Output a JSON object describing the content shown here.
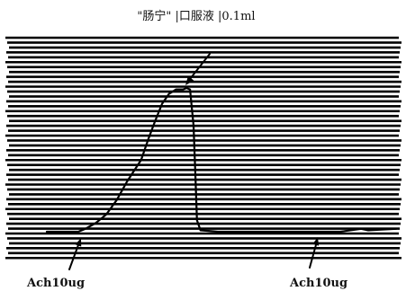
{
  "chart_data": {
    "type": "line",
    "title": "\"肠宁\" |口服液 |0.1ml",
    "grid": true,
    "series": [
      {
        "x": [
          0,
          9,
          11,
          14,
          17,
          20,
          23,
          27,
          29,
          31,
          33,
          35,
          37,
          39,
          40,
          41,
          42,
          42.5,
          43,
          44,
          49,
          64,
          84,
          90,
          92,
          100
        ],
        "y": [
          0,
          0,
          2,
          6,
          12,
          22,
          35,
          50,
          64,
          77,
          89,
          96,
          99,
          99,
          100,
          99,
          74,
          42,
          8,
          1,
          0,
          0,
          0,
          2,
          1,
          2
        ]
      }
    ],
    "annotations": [
      {
        "text": "Ach10ug"
      },
      {
        "text": "Ach10ug"
      }
    ],
    "colors": {
      "trace": "#000000",
      "background": "#ffffff"
    }
  }
}
